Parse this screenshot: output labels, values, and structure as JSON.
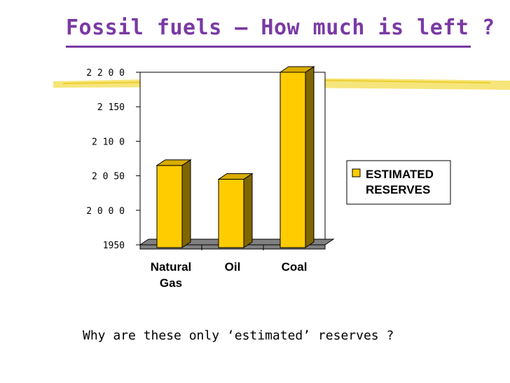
{
  "slide": {
    "title": "Fossil fuels – How much is left ?",
    "question": "Why are these only ‘estimated’ reserves ?"
  },
  "colors": {
    "title": "#7a3aa3",
    "bar_front": "#ffcc00",
    "bar_side": "#7f6600",
    "bar_top": "#d9ac00",
    "highlight": "#f5e163",
    "floor": "#808080"
  },
  "chart_data": {
    "type": "bar",
    "categories": [
      "Natural Gas",
      "Oil",
      "Coal"
    ],
    "category_lines": [
      [
        "Natural",
        "Gas"
      ],
      [
        "Oil"
      ],
      [
        "Coal"
      ]
    ],
    "series": [
      {
        "name": "ESTIMATED RESERVES",
        "values": [
          2065,
          2045,
          2200
        ]
      }
    ],
    "legend_lines": [
      "ESTIMATED",
      "RESERVES"
    ],
    "ylim": [
      1950,
      2200
    ],
    "yticks": [
      1950,
      2000,
      2050,
      2100,
      2150,
      2200
    ],
    "ytick_labels": [
      "1950",
      "2 0 0 0",
      "2 0 50",
      "2 10 0",
      "2 150",
      "2 2 0 0"
    ],
    "legend_position": "right",
    "gridlines": false
  }
}
